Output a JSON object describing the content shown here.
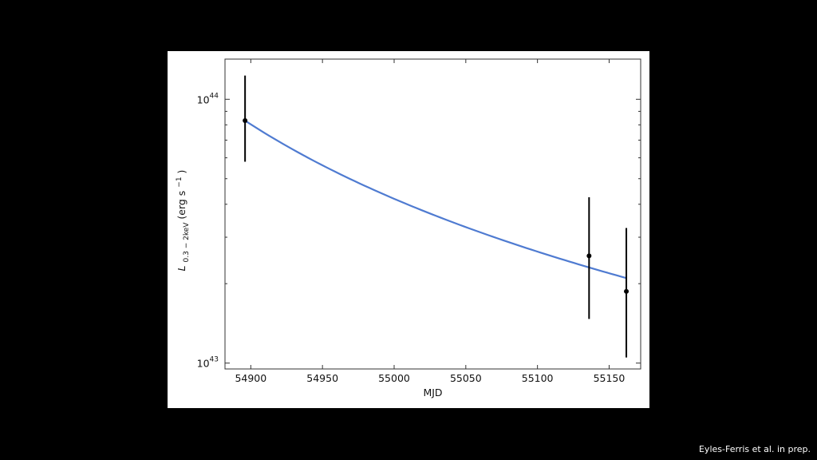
{
  "slide": {
    "background": "#000000",
    "caption": "Eyles-Ferris et al. in prep."
  },
  "chart_data": {
    "type": "scatter",
    "xlabel": "MJD",
    "ylabel": {
      "symbol": "L",
      "subscript": "0.3 − 2keV",
      "units_prefix": "(erg s",
      "units_exp": "−1",
      "units_suffix": ")"
    },
    "xlim": [
      54882,
      55172
    ],
    "ylim": [
      9.5e+42,
      1.42e+44
    ],
    "yscale": "log",
    "x_ticks": [
      54900,
      54950,
      55000,
      55050,
      55100,
      55150
    ],
    "x_tick_labels": [
      "54900",
      "54950",
      "55000",
      "55050",
      "55100",
      "55150"
    ],
    "y_ticks": [
      {
        "value": 1e+43,
        "base": "10",
        "exp": "43"
      },
      {
        "value": 1e+44,
        "base": "10",
        "exp": "44"
      }
    ],
    "grid": false,
    "series": [
      {
        "kind": "data",
        "color": "#000000",
        "points": [
          {
            "x": 54896,
            "y": 8.3e+43,
            "y_low": 5.8e+43,
            "y_high": 1.23e+44
          },
          {
            "x": 55136,
            "y": 2.55e+43,
            "y_low": 1.47e+43,
            "y_high": 4.25e+43
          },
          {
            "x": 55162,
            "y": 1.87e+43,
            "y_low": 1.05e+43,
            "y_high": 3.25e+43
          }
        ]
      },
      {
        "kind": "model",
        "color": "#4f7bd1",
        "x": [
          54896,
          55162
        ],
        "y": [
          8.3e+43,
          2.1e+43
        ],
        "shape": "power-law decay"
      }
    ]
  }
}
